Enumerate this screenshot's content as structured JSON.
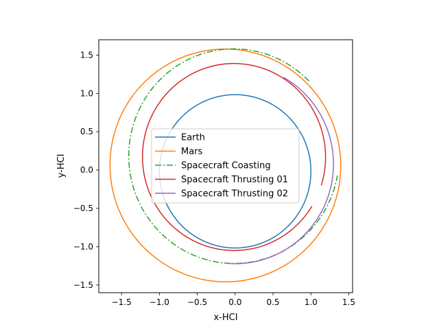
{
  "chart_data": {
    "type": "line",
    "title": "",
    "xlabel": "x-HCI",
    "ylabel": "y-HCI",
    "xlim": [
      -1.8,
      1.55
    ],
    "ylim": [
      -1.6,
      1.7
    ],
    "aspect": "equal",
    "grid": false,
    "legend_position": "center",
    "xticks": [
      -1.5,
      -1.0,
      -0.5,
      0.0,
      0.5,
      1.0,
      1.5
    ],
    "xtick_labels": [
      "−1.5",
      "−1.0",
      "−0.5",
      "0.0",
      "0.5",
      "1.0",
      "1.5"
    ],
    "yticks": [
      -1.5,
      -1.0,
      -0.5,
      0.0,
      0.5,
      1.0,
      1.5
    ],
    "ytick_labels": [
      "−1.5",
      "−1.0",
      "−0.5",
      "0.0",
      "0.5",
      "1.0",
      "1.5"
    ],
    "series": [
      {
        "name": "Earth",
        "color": "#1f77b4",
        "style": "solid",
        "orbit": {
          "semi_major_axis": 1.0,
          "eccentricity": 0.0167,
          "perihelion_angle_deg": 90,
          "from_deg": 0,
          "to_deg": 360
        }
      },
      {
        "name": "Mars",
        "color": "#ff7f0e",
        "style": "solid",
        "orbit": {
          "semi_major_axis": 1.524,
          "eccentricity": 0.0934,
          "perihelion_angle_deg": -25,
          "from_deg": 0,
          "to_deg": 360
        }
      },
      {
        "name": "Spacecraft Coasting",
        "color": "#2ca02c",
        "style": "dashdot",
        "orbit": {
          "semi_major_axis": 1.4,
          "eccentricity": 0.13,
          "perihelion_angle_deg": -85,
          "from_deg": 50,
          "to_deg": 357
        }
      },
      {
        "name": "Spacecraft Thrusting 01",
        "color": "#d62728",
        "style": "solid",
        "orbit": {
          "semi_major_axis": 1.22,
          "eccentricity": 0.14,
          "perihelion_angle_deg": -85,
          "from_deg": -10,
          "to_deg": 335
        }
      },
      {
        "name": "Spacecraft Thrusting 02",
        "color": "#9467bd",
        "style": "solid",
        "orbit": {
          "semi_major_axis": 1.3,
          "eccentricity": 0.06,
          "perihelion_angle_deg": -90,
          "from_deg": -95,
          "to_deg": 62
        }
      }
    ]
  }
}
